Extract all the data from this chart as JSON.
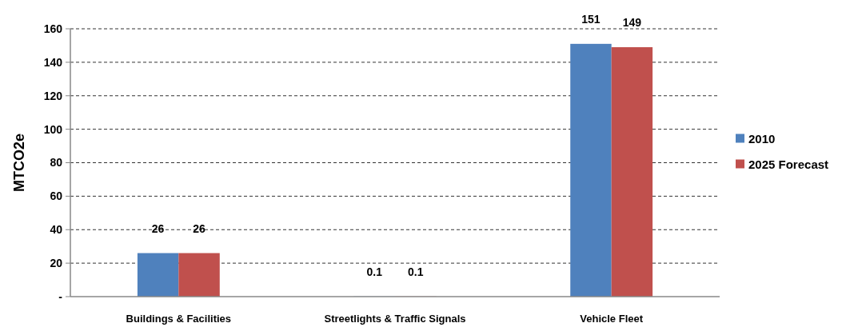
{
  "chart_data": {
    "type": "bar",
    "ylabel": "MTCO2e",
    "categories": [
      "Buildings & Facilities",
      "Streetlights & Traffic Signals",
      "Vehicle Fleet"
    ],
    "series": [
      {
        "name": "2010",
        "color": "#4f81bd",
        "values": [
          26,
          0.1,
          151
        ]
      },
      {
        "name": "2025 Forecast",
        "color": "#c0504d",
        "values": [
          26,
          0.1,
          149
        ]
      }
    ],
    "ylim": [
      0,
      160
    ],
    "yticks": [
      {
        "value": 0,
        "label": "-"
      },
      20,
      40,
      60,
      80,
      100,
      120,
      140,
      160
    ],
    "grid": "y",
    "data_labels": true,
    "legend": "right"
  }
}
